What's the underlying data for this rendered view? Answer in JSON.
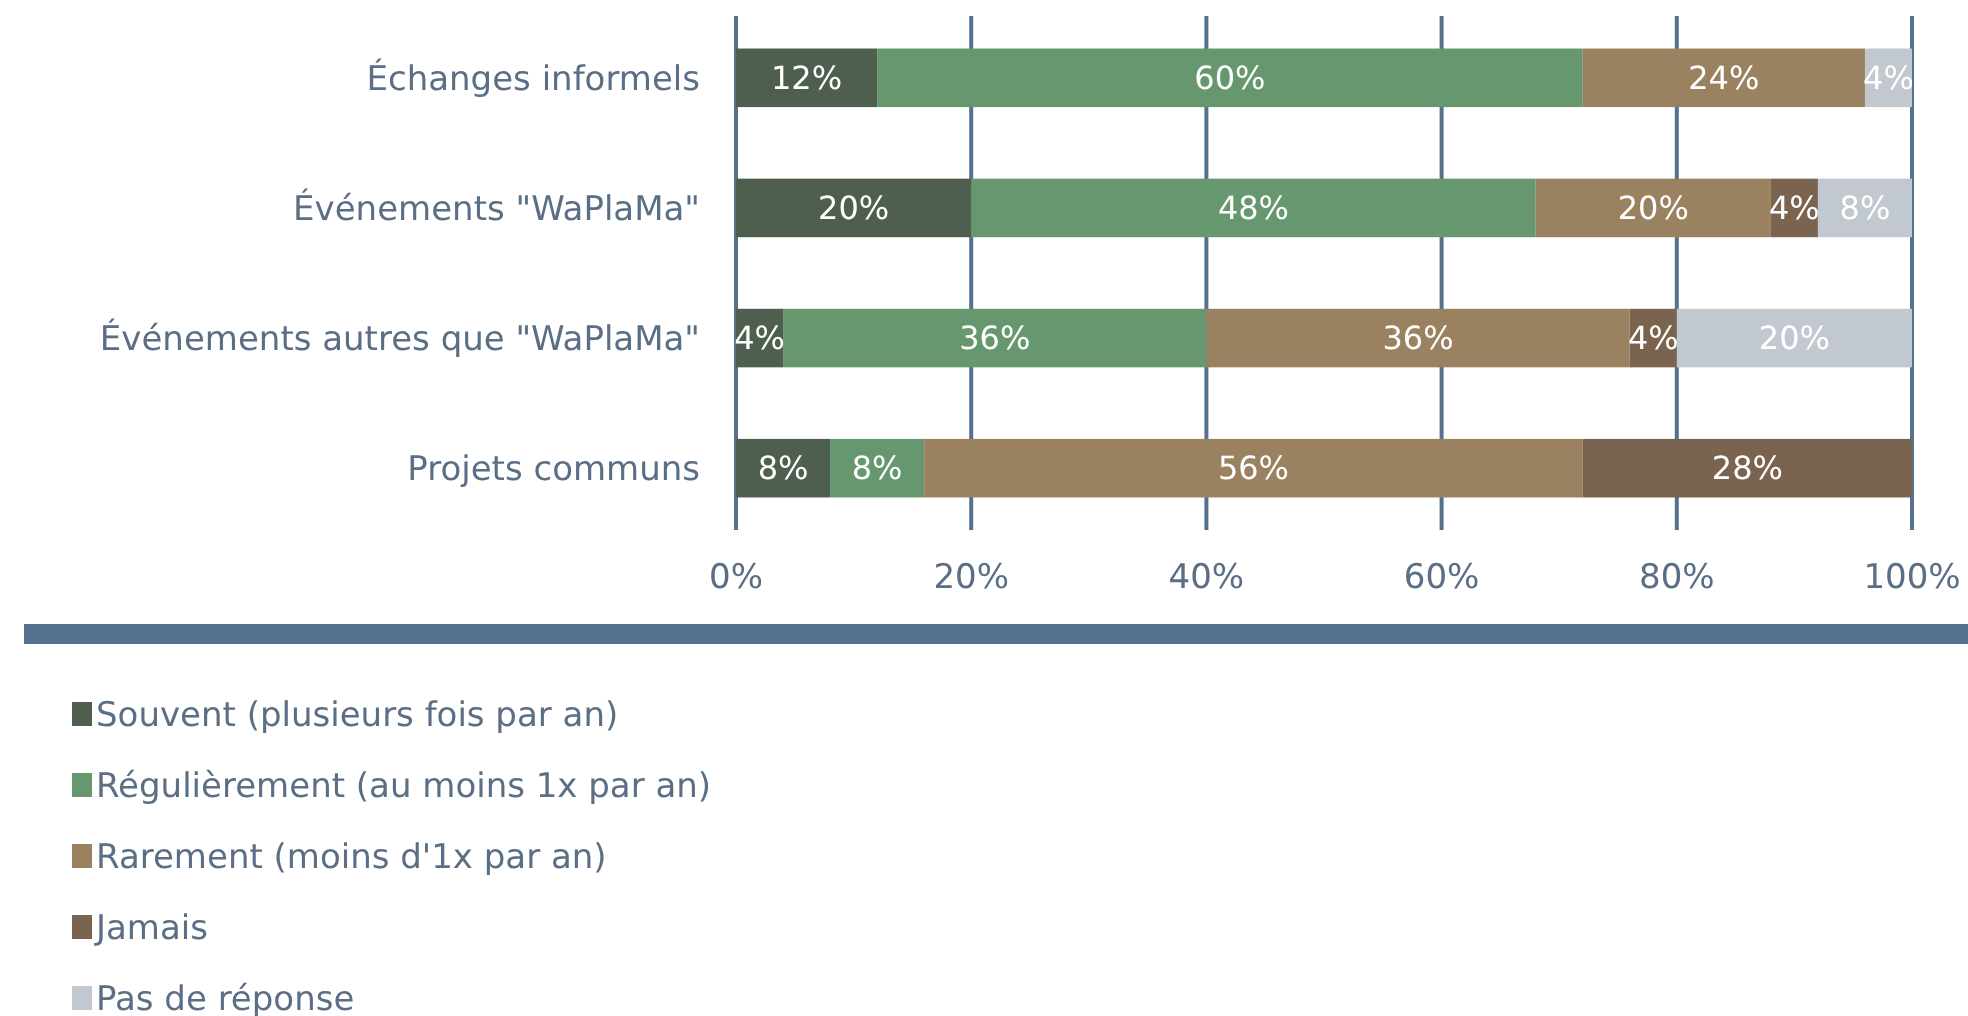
{
  "chart_data": {
    "type": "bar",
    "orientation": "horizontal",
    "stacked": true,
    "categories": [
      "Échanges informels",
      "Événements \"WaPlaMa\"",
      "Événements autres que \"WaPlaMa\"",
      "Projets communs"
    ],
    "series": [
      {
        "name": "Souvent (plusieurs fois par an)",
        "color": "#4f5f4f",
        "values": [
          12,
          20,
          4,
          8
        ],
        "value_labels": [
          "12%",
          "20%",
          "4%",
          "8%"
        ]
      },
      {
        "name": "Régulièrement (au moins 1x par an)",
        "color": "#66976f",
        "values": [
          60,
          48,
          36,
          8
        ],
        "value_labels": [
          "60%",
          "48%",
          "36%",
          "8%"
        ]
      },
      {
        "name": "Rarement (moins d'1x par an)",
        "color": "#9a8260",
        "values": [
          24,
          20,
          36,
          56
        ],
        "value_labels": [
          "24%",
          "20%",
          "36%",
          "56%"
        ]
      },
      {
        "name": "Jamais",
        "color": "#7a6450",
        "values": [
          0,
          4,
          4,
          28
        ],
        "value_labels": [
          null,
          "4%",
          "4%",
          "28%"
        ]
      },
      {
        "name": "Pas de réponse",
        "color": "#c2c8cf",
        "values": [
          4,
          8,
          20,
          0
        ],
        "value_labels": [
          "4%",
          "8%",
          "20%",
          null
        ]
      }
    ],
    "xlim": [
      0,
      100
    ],
    "xticks": [
      {
        "value": 0,
        "label": "0%"
      },
      {
        "value": 20,
        "label": "20%"
      },
      {
        "value": 40,
        "label": "40%"
      },
      {
        "value": 60,
        "label": "60%"
      },
      {
        "value": 80,
        "label": "80%"
      },
      {
        "value": 100,
        "label": "100%"
      }
    ],
    "grid": "x",
    "legend": "bottom left"
  }
}
